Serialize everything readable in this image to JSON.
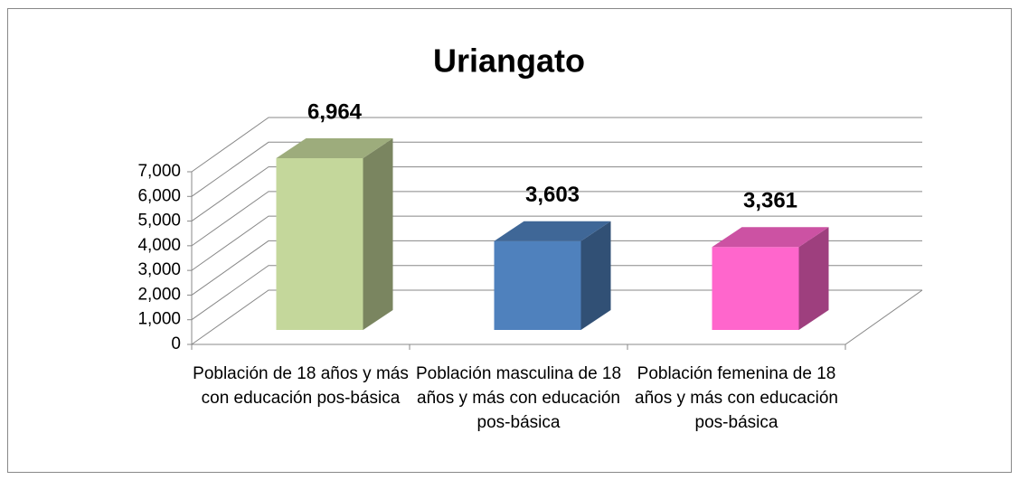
{
  "chart_data": {
    "type": "bar3d",
    "title": "Uriangato",
    "categories": [
      "Población de 18 años y más con educación pos-básica",
      "Población masculina de 18 años y más con educación pos-básica",
      "Población femenina de 18 años y más con educación pos-básica"
    ],
    "values": [
      6964,
      3603,
      3361
    ],
    "value_labels": [
      "6,964",
      "3,603",
      "3,361"
    ],
    "colors": [
      "#c4d79b",
      "#4f81bd",
      "#ff66cc"
    ],
    "ylim": [
      0,
      7000
    ],
    "yticks": [
      0,
      {
        "value": 1000,
        "label": "1,000"
      },
      {
        "value": 2000,
        "label": "2,000"
      },
      {
        "value": 3000,
        "label": "3,000"
      },
      {
        "value": 4000,
        "label": "4,000"
      },
      {
        "value": 5000,
        "label": "5,000"
      },
      {
        "value": 6000,
        "label": "6,000"
      },
      {
        "value": 7000,
        "label": "7,000"
      }
    ],
    "grid": true
  }
}
